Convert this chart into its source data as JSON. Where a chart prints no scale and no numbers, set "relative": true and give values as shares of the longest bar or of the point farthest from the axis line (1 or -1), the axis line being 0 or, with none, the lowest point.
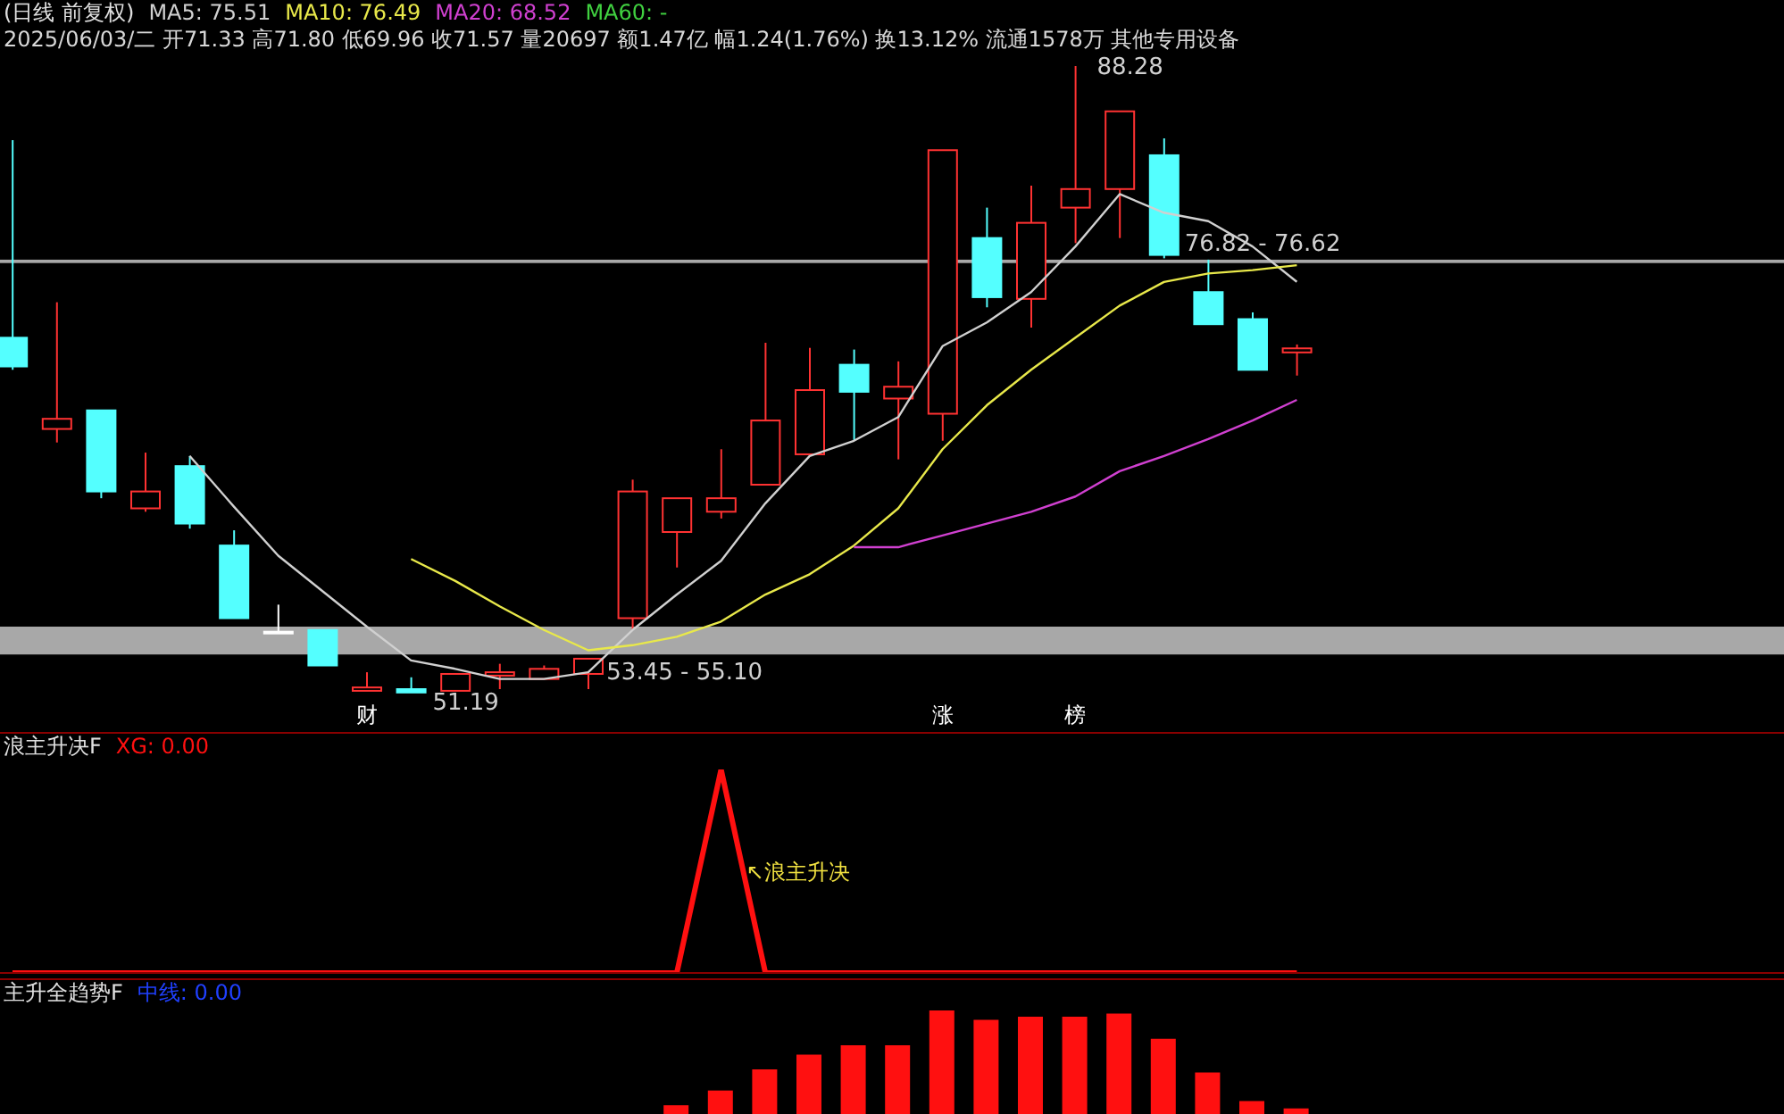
{
  "chart_data": [
    {
      "type": "candlestick",
      "title": "(日线 前复权)",
      "subtitle": "2025/06/03/二 开71.33 高71.80 低69.96 收71.57 量20697 额1.47亿 幅1.24(1.76%) 换13.12% 流通1578万 其他专用设备",
      "categories": [
        null,
        null,
        null,
        null,
        null,
        null,
        null,
        null,
        "财",
        null,
        null,
        null,
        null,
        null,
        null,
        null,
        null,
        null,
        null,
        null,
        null,
        "涨",
        null,
        null,
        "榜",
        null,
        null,
        null,
        null,
        null
      ],
      "ohlc": [
        [
          72.2,
          83.9,
          70.3,
          70.5
        ],
        [
          66.8,
          74.3,
          66.0,
          67.4
        ],
        [
          67.9,
          67.9,
          62.7,
          63.1
        ],
        [
          62.1,
          65.4,
          61.9,
          63.1
        ],
        [
          64.6,
          65.2,
          60.9,
          61.2
        ],
        [
          59.9,
          60.8,
          55.6,
          55.6
        ],
        [
          54.8,
          56.4,
          54.8,
          54.8
        ],
        [
          54.9,
          54.9,
          52.8,
          52.8
        ],
        [
          51.3,
          52.4,
          51.3,
          51.5
        ],
        [
          51.4,
          52.1,
          51.19,
          51.2
        ],
        [
          51.3,
          52.3,
          51.3,
          52.3
        ],
        [
          52.2,
          52.9,
          51.4,
          52.4
        ],
        [
          52.0,
          52.8,
          52.0,
          52.6
        ],
        [
          52.3,
          53.2,
          51.4,
          53.2
        ],
        [
          55.6,
          63.8,
          54.9,
          63.1
        ],
        [
          60.7,
          62.7,
          58.6,
          62.7
        ],
        [
          61.9,
          65.6,
          61.5,
          62.7
        ],
        [
          63.5,
          71.9,
          63.5,
          67.3
        ],
        [
          65.3,
          71.6,
          65.3,
          69.1
        ],
        [
          70.6,
          71.5,
          66.1,
          69.0
        ],
        [
          68.6,
          70.8,
          65.0,
          69.3
        ],
        [
          67.7,
          83.3,
          66.1,
          83.3
        ],
        [
          78.1,
          79.9,
          74.0,
          74.6
        ],
        [
          74.5,
          81.2,
          72.8,
          79.0
        ],
        [
          79.9,
          88.28,
          77.8,
          81.0
        ],
        [
          81.0,
          85.6,
          78.1,
          85.6
        ],
        [
          83.0,
          84.0,
          76.9,
          77.1
        ],
        [
          74.9,
          76.82,
          73.0,
          73.0
        ],
        [
          73.3,
          73.7,
          70.3,
          70.3
        ],
        [
          71.33,
          71.8,
          69.96,
          71.57
        ]
      ],
      "colors": [
        "#54ffff",
        "#ff3232",
        "#54ffff",
        "#ff3232",
        "#54ffff",
        "#54ffff",
        "#ffffff",
        "#54ffff",
        "#ff3232",
        "#54ffff",
        "#ff3232",
        "#ff3232",
        "#ff3232",
        "#ff3232",
        "#ff3232",
        "#ff3232",
        "#ff3232",
        "#ff3232",
        "#ff3232",
        "#54ffff",
        "#ff3232",
        "#ff3232",
        "#54ffff",
        "#ff3232",
        "#ff3232",
        "#ff3232",
        "#54ffff",
        "#54ffff",
        "#54ffff",
        "#ff3232"
      ],
      "series": [
        {
          "type": "line",
          "name": "MA5: 75.51",
          "color": "#d0d0d0",
          "values": [
            null,
            null,
            null,
            null,
            65.2,
            62.2,
            59.3,
            57.2,
            55.1,
            53.1,
            52.6,
            52.0,
            52.0,
            52.4,
            54.9,
            57.0,
            59.0,
            62.4,
            65.2,
            66.1,
            67.5,
            71.7,
            73.1,
            74.9,
            77.6,
            80.7,
            79.6,
            79.1,
            77.6,
            75.51
          ]
        },
        {
          "type": "line",
          "name": "MA10: 76.49",
          "color": "#e8e84a",
          "values": [
            null,
            null,
            null,
            null,
            null,
            null,
            null,
            null,
            null,
            59.1,
            57.8,
            56.3,
            54.9,
            53.7,
            54.0,
            54.5,
            55.4,
            57.0,
            58.2,
            59.9,
            62.1,
            65.6,
            68.2,
            70.3,
            72.2,
            74.1,
            75.5,
            76.0,
            76.2,
            76.49
          ]
        },
        {
          "type": "line",
          "name": "MA20: 68.52",
          "color": "#d040d0",
          "values": [
            null,
            null,
            null,
            null,
            null,
            null,
            null,
            null,
            null,
            null,
            null,
            null,
            null,
            null,
            null,
            null,
            null,
            null,
            null,
            59.8,
            59.8,
            60.5,
            61.2,
            61.9,
            62.8,
            64.3,
            65.2,
            66.2,
            67.3,
            68.52
          ]
        },
        {
          "type": "line",
          "name": "MA60: -",
          "color": "#40d040",
          "values": [
            null,
            null,
            null,
            null,
            null,
            null,
            null,
            null,
            null,
            null,
            null,
            null,
            null,
            null,
            null,
            null,
            null,
            null,
            null,
            null,
            null,
            null,
            null,
            null,
            null,
            null,
            null,
            null,
            null,
            null
          ]
        }
      ],
      "legend": "top",
      "tick_labels": "x",
      "annotations": [
        {
          "text": "88.28",
          "x": "榜",
          "y": 88.28
        },
        "51.19"
      ],
      "bands": [
        {
          "axis": "y",
          "from": 53.45,
          "to": 55.1,
          "label": "53.45 - 55.10",
          "color": "#a8a8a8"
        },
        {
          "axis": "y",
          "from": 76.62,
          "to": 76.82,
          "label": "76.82 - 76.62",
          "color": "#a8a8a8"
        }
      ]
    },
    {
      "type": "line",
      "title": "浪主升决F",
      "categories": [
        null,
        null,
        null,
        null,
        null,
        null,
        null,
        null,
        null,
        null,
        null,
        null,
        null,
        null,
        null,
        null,
        null,
        null,
        null,
        null,
        null,
        null,
        null,
        null,
        null,
        null,
        null,
        null,
        null,
        null
      ],
      "relative": true,
      "series": [
        {
          "name": "XG: 0.00",
          "color": "#ff1010",
          "values": [
            0,
            0,
            0,
            0,
            0,
            0,
            0,
            0,
            0,
            0,
            0,
            0,
            0,
            0,
            0,
            0,
            1,
            0,
            0,
            0,
            0,
            0,
            0,
            0,
            0,
            0,
            0,
            0,
            0,
            0
          ]
        }
      ],
      "legend": "top left",
      "tick_labels": false,
      "annotations": [
        "↖浪主升决"
      ]
    },
    {
      "type": "bar",
      "title": "主升全趋势F",
      "subtitle": "中线: 0.00",
      "categories": [
        null,
        null,
        null,
        null,
        null,
        null,
        null,
        null,
        null,
        null,
        null,
        null,
        null,
        null,
        null,
        null,
        null,
        null,
        null,
        null,
        null,
        null,
        null,
        null,
        null,
        null,
        null,
        null,
        null,
        null
      ],
      "relative": true,
      "values": [
        null,
        null,
        null,
        null,
        null,
        null,
        null,
        null,
        null,
        null,
        null,
        null,
        null,
        null,
        null,
        0.1,
        0.24,
        0.44,
        0.58,
        0.67,
        0.67,
        1,
        0.91,
        0.94,
        0.94,
        0.97,
        0.73,
        0.41,
        0.14,
        0.07
      ],
      "color": "#ff1010",
      "tick_labels": false
    }
  ]
}
